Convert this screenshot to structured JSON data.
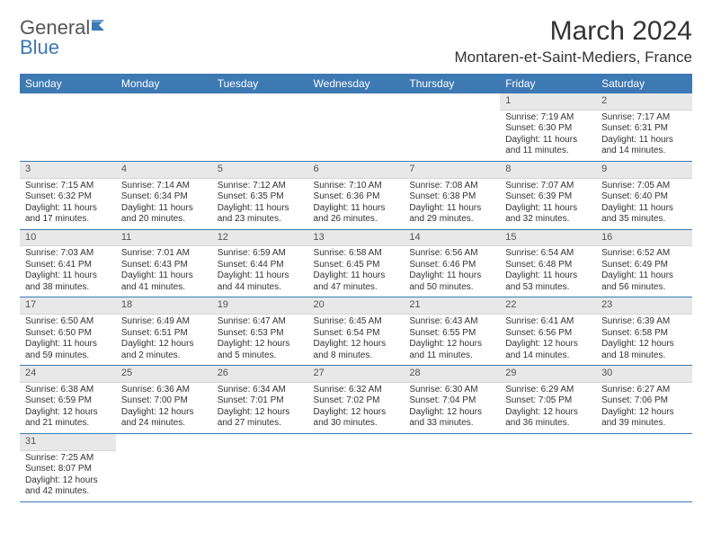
{
  "logo": {
    "part1": "General",
    "part2": "Blue"
  },
  "title": "March 2024",
  "location": "Montaren-et-Saint-Mediers, France",
  "colors": {
    "header_bg": "#3d79b3",
    "header_text": "#ffffff",
    "daynum_bg": "#e8e8e8",
    "row_divider": "#3d79b3",
    "text": "#333333",
    "logo_gray": "#555555"
  },
  "days_of_week": [
    "Sunday",
    "Monday",
    "Tuesday",
    "Wednesday",
    "Thursday",
    "Friday",
    "Saturday"
  ],
  "weeks": [
    [
      null,
      null,
      null,
      null,
      null,
      {
        "n": "1",
        "sr": "Sunrise: 7:19 AM",
        "ss": "Sunset: 6:30 PM",
        "dl1": "Daylight: 11 hours",
        "dl2": "and 11 minutes."
      },
      {
        "n": "2",
        "sr": "Sunrise: 7:17 AM",
        "ss": "Sunset: 6:31 PM",
        "dl1": "Daylight: 11 hours",
        "dl2": "and 14 minutes."
      }
    ],
    [
      {
        "n": "3",
        "sr": "Sunrise: 7:15 AM",
        "ss": "Sunset: 6:32 PM",
        "dl1": "Daylight: 11 hours",
        "dl2": "and 17 minutes."
      },
      {
        "n": "4",
        "sr": "Sunrise: 7:14 AM",
        "ss": "Sunset: 6:34 PM",
        "dl1": "Daylight: 11 hours",
        "dl2": "and 20 minutes."
      },
      {
        "n": "5",
        "sr": "Sunrise: 7:12 AM",
        "ss": "Sunset: 6:35 PM",
        "dl1": "Daylight: 11 hours",
        "dl2": "and 23 minutes."
      },
      {
        "n": "6",
        "sr": "Sunrise: 7:10 AM",
        "ss": "Sunset: 6:36 PM",
        "dl1": "Daylight: 11 hours",
        "dl2": "and 26 minutes."
      },
      {
        "n": "7",
        "sr": "Sunrise: 7:08 AM",
        "ss": "Sunset: 6:38 PM",
        "dl1": "Daylight: 11 hours",
        "dl2": "and 29 minutes."
      },
      {
        "n": "8",
        "sr": "Sunrise: 7:07 AM",
        "ss": "Sunset: 6:39 PM",
        "dl1": "Daylight: 11 hours",
        "dl2": "and 32 minutes."
      },
      {
        "n": "9",
        "sr": "Sunrise: 7:05 AM",
        "ss": "Sunset: 6:40 PM",
        "dl1": "Daylight: 11 hours",
        "dl2": "and 35 minutes."
      }
    ],
    [
      {
        "n": "10",
        "sr": "Sunrise: 7:03 AM",
        "ss": "Sunset: 6:41 PM",
        "dl1": "Daylight: 11 hours",
        "dl2": "and 38 minutes."
      },
      {
        "n": "11",
        "sr": "Sunrise: 7:01 AM",
        "ss": "Sunset: 6:43 PM",
        "dl1": "Daylight: 11 hours",
        "dl2": "and 41 minutes."
      },
      {
        "n": "12",
        "sr": "Sunrise: 6:59 AM",
        "ss": "Sunset: 6:44 PM",
        "dl1": "Daylight: 11 hours",
        "dl2": "and 44 minutes."
      },
      {
        "n": "13",
        "sr": "Sunrise: 6:58 AM",
        "ss": "Sunset: 6:45 PM",
        "dl1": "Daylight: 11 hours",
        "dl2": "and 47 minutes."
      },
      {
        "n": "14",
        "sr": "Sunrise: 6:56 AM",
        "ss": "Sunset: 6:46 PM",
        "dl1": "Daylight: 11 hours",
        "dl2": "and 50 minutes."
      },
      {
        "n": "15",
        "sr": "Sunrise: 6:54 AM",
        "ss": "Sunset: 6:48 PM",
        "dl1": "Daylight: 11 hours",
        "dl2": "and 53 minutes."
      },
      {
        "n": "16",
        "sr": "Sunrise: 6:52 AM",
        "ss": "Sunset: 6:49 PM",
        "dl1": "Daylight: 11 hours",
        "dl2": "and 56 minutes."
      }
    ],
    [
      {
        "n": "17",
        "sr": "Sunrise: 6:50 AM",
        "ss": "Sunset: 6:50 PM",
        "dl1": "Daylight: 11 hours",
        "dl2": "and 59 minutes."
      },
      {
        "n": "18",
        "sr": "Sunrise: 6:49 AM",
        "ss": "Sunset: 6:51 PM",
        "dl1": "Daylight: 12 hours",
        "dl2": "and 2 minutes."
      },
      {
        "n": "19",
        "sr": "Sunrise: 6:47 AM",
        "ss": "Sunset: 6:53 PM",
        "dl1": "Daylight: 12 hours",
        "dl2": "and 5 minutes."
      },
      {
        "n": "20",
        "sr": "Sunrise: 6:45 AM",
        "ss": "Sunset: 6:54 PM",
        "dl1": "Daylight: 12 hours",
        "dl2": "and 8 minutes."
      },
      {
        "n": "21",
        "sr": "Sunrise: 6:43 AM",
        "ss": "Sunset: 6:55 PM",
        "dl1": "Daylight: 12 hours",
        "dl2": "and 11 minutes."
      },
      {
        "n": "22",
        "sr": "Sunrise: 6:41 AM",
        "ss": "Sunset: 6:56 PM",
        "dl1": "Daylight: 12 hours",
        "dl2": "and 14 minutes."
      },
      {
        "n": "23",
        "sr": "Sunrise: 6:39 AM",
        "ss": "Sunset: 6:58 PM",
        "dl1": "Daylight: 12 hours",
        "dl2": "and 18 minutes."
      }
    ],
    [
      {
        "n": "24",
        "sr": "Sunrise: 6:38 AM",
        "ss": "Sunset: 6:59 PM",
        "dl1": "Daylight: 12 hours",
        "dl2": "and 21 minutes."
      },
      {
        "n": "25",
        "sr": "Sunrise: 6:36 AM",
        "ss": "Sunset: 7:00 PM",
        "dl1": "Daylight: 12 hours",
        "dl2": "and 24 minutes."
      },
      {
        "n": "26",
        "sr": "Sunrise: 6:34 AM",
        "ss": "Sunset: 7:01 PM",
        "dl1": "Daylight: 12 hours",
        "dl2": "and 27 minutes."
      },
      {
        "n": "27",
        "sr": "Sunrise: 6:32 AM",
        "ss": "Sunset: 7:02 PM",
        "dl1": "Daylight: 12 hours",
        "dl2": "and 30 minutes."
      },
      {
        "n": "28",
        "sr": "Sunrise: 6:30 AM",
        "ss": "Sunset: 7:04 PM",
        "dl1": "Daylight: 12 hours",
        "dl2": "and 33 minutes."
      },
      {
        "n": "29",
        "sr": "Sunrise: 6:29 AM",
        "ss": "Sunset: 7:05 PM",
        "dl1": "Daylight: 12 hours",
        "dl2": "and 36 minutes."
      },
      {
        "n": "30",
        "sr": "Sunrise: 6:27 AM",
        "ss": "Sunset: 7:06 PM",
        "dl1": "Daylight: 12 hours",
        "dl2": "and 39 minutes."
      }
    ],
    [
      {
        "n": "31",
        "sr": "Sunrise: 7:25 AM",
        "ss": "Sunset: 8:07 PM",
        "dl1": "Daylight: 12 hours",
        "dl2": "and 42 minutes."
      },
      null,
      null,
      null,
      null,
      null,
      null
    ]
  ]
}
